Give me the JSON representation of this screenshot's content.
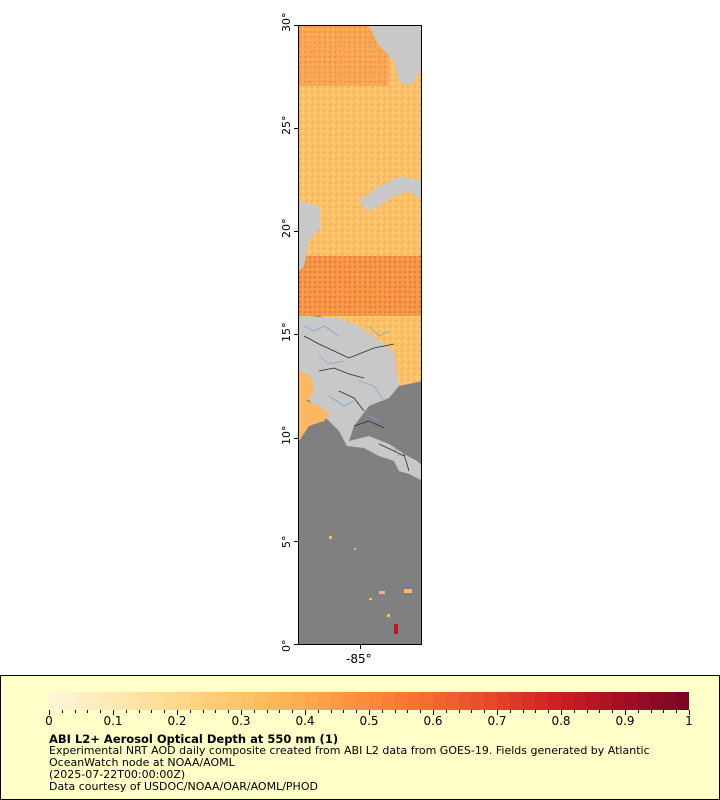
{
  "map": {
    "lat_labels": [
      "0°",
      "5°",
      "10°",
      "15°",
      "20°",
      "25°",
      "30°"
    ],
    "lon_label": "-85°",
    "colors": {
      "ocean_nodata": "#808080",
      "land": "#c8c8c8",
      "rivers": "#7aa6d6",
      "borders": "#2a2a2a"
    }
  },
  "legend": {
    "ticks": [
      "0",
      "0.1",
      "0.2",
      "0.3",
      "0.4",
      "0.5",
      "0.6",
      "0.7",
      "0.8",
      "0.9",
      "1"
    ],
    "colors": [
      "#fff4d6",
      "#fee8b0",
      "#fed88a",
      "#fec468",
      "#fda94e",
      "#fc8a3c",
      "#f46a30",
      "#e6452a",
      "#cf1f24",
      "#a50f22",
      "#7d0626"
    ],
    "title": "ABI L2+ Aerosol Optical Depth at 550 nm (1)",
    "description": "Experimental NRT AOD daily composite created from ABI L2 data from GOES-19. Fields generated by Atlantic OceanWatch node at NOAA/AOML",
    "time": "(2025-07-22T00:00:00Z)",
    "credit": "Data courtesy of USDOC/NOAA/OAR/AOML/PHOD"
  }
}
